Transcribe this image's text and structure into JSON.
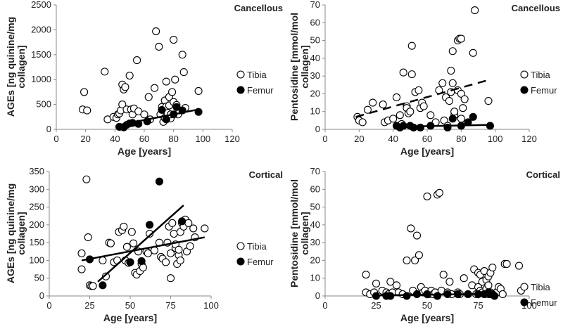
{
  "chart_data": [
    {
      "type": "scatter",
      "title": "Cancellous",
      "xlabel": "Age [years]",
      "ylabel": [
        "AGEs [ng quinine/mg",
        "collagen]"
      ],
      "xlim": [
        0,
        120
      ],
      "ylim": [
        0,
        2500
      ],
      "xticks": [
        "0",
        "20",
        "40",
        "60",
        "80",
        "100",
        "120"
      ],
      "yticks": [
        "0",
        "500",
        "1000",
        "1500",
        "2000",
        "2500"
      ],
      "legend": [
        "Tibia",
        "Femur"
      ],
      "series": [
        {
          "name": "Tibia",
          "marker": "open-circle",
          "x": [
            18,
            19,
            21,
            33,
            35,
            39,
            41,
            42,
            43,
            44,
            45,
            45,
            46,
            47,
            48,
            50,
            51,
            52,
            53,
            55,
            56,
            60,
            63,
            64,
            67,
            68,
            70,
            71,
            72,
            73,
            74,
            74,
            75,
            75,
            76,
            77,
            77,
            78,
            78,
            79,
            80,
            80,
            81,
            82,
            83,
            84,
            86,
            87,
            88,
            97
          ],
          "y": [
            400,
            750,
            380,
            1160,
            200,
            250,
            230,
            300,
            320,
            380,
            500,
            900,
            800,
            850,
            400,
            1080,
            400,
            300,
            420,
            1390,
            360,
            300,
            650,
            200,
            830,
            1970,
            1660,
            300,
            450,
            150,
            230,
            580,
            960,
            460,
            330,
            480,
            650,
            220,
            300,
            750,
            1800,
            550,
            1000,
            490,
            300,
            380,
            1500,
            1150,
            430,
            770
          ]
        },
        {
          "name": "Femur",
          "marker": "filled-circle",
          "x": [
            43,
            46,
            48,
            50,
            52,
            56,
            62,
            72,
            75,
            80,
            82,
            86,
            97
          ],
          "y": [
            50,
            40,
            90,
            120,
            130,
            110,
            160,
            390,
            200,
            300,
            450,
            380,
            350
          ]
        }
      ],
      "trendlines": [
        {
          "series": "Femur",
          "style": "solid",
          "x": [
            43,
            97
          ],
          "y": [
            90,
            400
          ]
        }
      ]
    },
    {
      "type": "scatter",
      "title": "Cancellous",
      "xlabel": "Age [years]",
      "ylabel": [
        "Pentosidine [mmol/mol",
        "collagen]"
      ],
      "xlim": [
        0,
        120
      ],
      "ylim": [
        0,
        70
      ],
      "xticks": [
        "0",
        "20",
        "40",
        "60",
        "80",
        "100",
        "120"
      ],
      "yticks": [
        "0",
        "10",
        "20",
        "30",
        "40",
        "50",
        "60",
        "70"
      ],
      "legend": [
        "Tibia",
        "Femur"
      ],
      "series": [
        {
          "name": "Tibia",
          "marker": "open-circle",
          "x": [
            19,
            20,
            22,
            25,
            28,
            34,
            35,
            37,
            40,
            42,
            44,
            45,
            46,
            48,
            48,
            49,
            50,
            51,
            51,
            53,
            55,
            56,
            57,
            58,
            62,
            65,
            67,
            69,
            70,
            71,
            72,
            73,
            74,
            74,
            75,
            75,
            76,
            76,
            78,
            78,
            79,
            80,
            80,
            80,
            81,
            82,
            87,
            88,
            96
          ],
          "y": [
            7,
            5,
            4,
            11,
            15,
            14,
            4,
            5,
            6,
            18,
            8,
            3,
            32,
            13,
            12,
            9,
            10,
            47,
            31,
            21,
            22,
            12,
            15,
            13,
            8,
            4,
            22,
            26,
            5,
            18,
            2,
            16,
            21,
            33,
            26,
            44,
            8,
            10,
            22,
            50,
            51,
            51,
            20,
            6,
            12,
            17,
            43,
            67,
            16
          ]
        },
        {
          "name": "Femur",
          "marker": "filled-circle",
          "x": [
            42,
            44,
            46,
            50,
            52,
            56,
            62,
            72,
            75,
            80,
            84,
            87,
            97
          ],
          "y": [
            2,
            1,
            2,
            2,
            1,
            1,
            2,
            1,
            6,
            2,
            4,
            7,
            2
          ]
        }
      ],
      "trendlines": [
        {
          "series": "Tibia",
          "style": "dashed",
          "x": [
            18,
            97
          ],
          "y": [
            7,
            28
          ]
        },
        {
          "series": "Femur",
          "style": "solid",
          "x": [
            42,
            97
          ],
          "y": [
            1.5,
            2.5
          ]
        }
      ]
    },
    {
      "type": "scatter",
      "title": "Cortical",
      "xlabel": "Age [years]",
      "ylabel": [
        "AGEs [ng quinine/mg",
        "collagen]"
      ],
      "xlim": [
        0,
        100
      ],
      "ylim": [
        0,
        350
      ],
      "xticks": [
        "0",
        "25",
        "50",
        "75",
        "100"
      ],
      "yticks": [
        "0",
        "50",
        "100",
        "150",
        "200",
        "250",
        "300",
        "350"
      ],
      "legend": [
        "Tibia",
        "Femur"
      ],
      "series": [
        {
          "name": "Tibia",
          "marker": "open-circle",
          "x": [
            20,
            20,
            23,
            24,
            25,
            26,
            27,
            33,
            35,
            37,
            38,
            40,
            42,
            43,
            45,
            46,
            47,
            48,
            49,
            50,
            51,
            52,
            53,
            54,
            55,
            56,
            57,
            58,
            60,
            61,
            62,
            65,
            68,
            69,
            70,
            72,
            73,
            74,
            75,
            75,
            76,
            77,
            78,
            78,
            79,
            80,
            80,
            81,
            81,
            82,
            83,
            84,
            85,
            86,
            87,
            89,
            90,
            96
          ],
          "y": [
            120,
            75,
            328,
            165,
            30,
            28,
            28,
            100,
            55,
            150,
            148,
            95,
            100,
            180,
            185,
            195,
            100,
            138,
            93,
            95,
            180,
            148,
            65,
            60,
            125,
            70,
            90,
            80,
            125,
            120,
            175,
            128,
            150,
            110,
            105,
            95,
            150,
            195,
            50,
            120,
            205,
            175,
            135,
            145,
            90,
            115,
            130,
            100,
            180,
            205,
            195,
            215,
            125,
            205,
            140,
            190,
            165,
            190
          ]
        },
        {
          "name": "Femur",
          "marker": "filled-circle",
          "x": [
            25,
            33,
            50,
            57,
            62,
            68,
            82
          ],
          "y": [
            103,
            30,
            95,
            98,
            200,
            322,
            210
          ]
        }
      ],
      "trendlines": [
        {
          "series": "Femur",
          "style": "solid",
          "x": [
            30,
            83
          ],
          "y": [
            40,
            255
          ]
        },
        {
          "series": "Tibia",
          "style": "solid",
          "x": [
            20,
            96
          ],
          "y": [
            100,
            165
          ]
        }
      ]
    },
    {
      "type": "scatter",
      "title": "Cortical",
      "xlabel": "Age [years]",
      "ylabel": [
        "Pentosidine [mmol/mol",
        "collagen]"
      ],
      "xlim": [
        0,
        100
      ],
      "ylim": [
        0,
        70
      ],
      "xticks": [
        "0",
        "25",
        "50",
        "75",
        "100"
      ],
      "yticks": [
        "0",
        "10",
        "20",
        "30",
        "40",
        "50",
        "60",
        "70"
      ],
      "legend": [
        "Tibia",
        "Femur"
      ],
      "series": [
        {
          "name": "Tibia",
          "marker": "open-circle",
          "x": [
            20,
            20,
            22,
            24,
            25,
            28,
            30,
            31,
            32,
            33,
            35,
            36,
            38,
            40,
            42,
            43,
            44,
            45,
            46,
            47,
            48,
            49,
            50,
            51,
            52,
            53,
            54,
            55,
            56,
            57,
            58,
            60,
            61,
            62,
            65,
            66,
            68,
            70,
            72,
            73,
            74,
            75,
            75,
            76,
            76,
            77,
            77,
            78,
            78,
            79,
            79,
            80,
            80,
            80,
            81,
            81,
            82,
            83,
            84,
            85,
            86,
            87,
            88,
            89,
            95,
            96
          ],
          "y": [
            12,
            2,
            1,
            2,
            7,
            3,
            2,
            1,
            8,
            2,
            6,
            2,
            1,
            20,
            38,
            3,
            20,
            34,
            23,
            5,
            2,
            3,
            56,
            1,
            3,
            1,
            2,
            57,
            58,
            3,
            12,
            2,
            8,
            1,
            2,
            1,
            10,
            1,
            6,
            15,
            1,
            5,
            13,
            3,
            12,
            8,
            2,
            14,
            1,
            9,
            4,
            11,
            1,
            6,
            13,
            2,
            16,
            1,
            2,
            5,
            4,
            1,
            18,
            18,
            17,
            3
          ]
        },
        {
          "name": "Femur",
          "marker": "filled-circle",
          "x": [
            25,
            30,
            32,
            40,
            45,
            50,
            55,
            60,
            65,
            70,
            75,
            78,
            80,
            81,
            82,
            83
          ],
          "y": [
            0,
            0,
            0,
            0,
            1,
            1,
            0,
            1,
            1,
            1,
            1,
            1,
            2,
            1,
            1,
            0
          ]
        }
      ],
      "trendlines": [
        {
          "series": "Femur",
          "style": "solid",
          "x": [
            25,
            83
          ],
          "y": [
            0.3,
            1.2
          ]
        }
      ]
    }
  ]
}
